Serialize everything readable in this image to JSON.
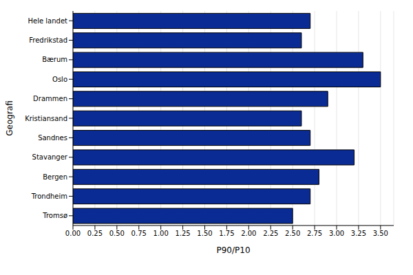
{
  "chart_data": {
    "type": "bar",
    "orientation": "horizontal",
    "x_label": "P90/P10",
    "y_label": "Geografi",
    "categories": [
      "Hele landet",
      "Fredrikstad",
      "Bærum",
      "Oslo",
      "Drammen",
      "Kristiansand",
      "Sandnes",
      "Stavanger",
      "Bergen",
      "Trondheim",
      "Tromsø"
    ],
    "values": [
      2.7,
      2.6,
      3.3,
      3.5,
      2.9,
      2.6,
      2.7,
      3.2,
      2.8,
      2.7,
      2.5
    ],
    "color": "#0a2b94",
    "xlim": [
      0,
      3.65
    ],
    "xticks": [
      {
        "value": 0,
        "label": "0.00"
      },
      {
        "value": 0.25,
        "label": "0.25"
      },
      {
        "value": 0.5,
        "label": "0.50"
      },
      {
        "value": 0.75,
        "label": "0.75"
      },
      {
        "value": 1,
        "label": "1.00"
      },
      {
        "value": 1.25,
        "label": "1.25"
      },
      {
        "value": 1.5,
        "label": "1.50"
      },
      {
        "value": 1.75,
        "label": "1.75"
      },
      {
        "value": 2,
        "label": "2.00"
      },
      {
        "value": 2.25,
        "label": "2.25"
      },
      {
        "value": 2.5,
        "label": "2.50"
      },
      {
        "value": 2.75,
        "label": "2.75"
      },
      {
        "value": 3,
        "label": "3.00"
      },
      {
        "value": 3.25,
        "label": "3.25"
      },
      {
        "value": 3.5,
        "label": "3.50"
      }
    ],
    "grid": true
  }
}
